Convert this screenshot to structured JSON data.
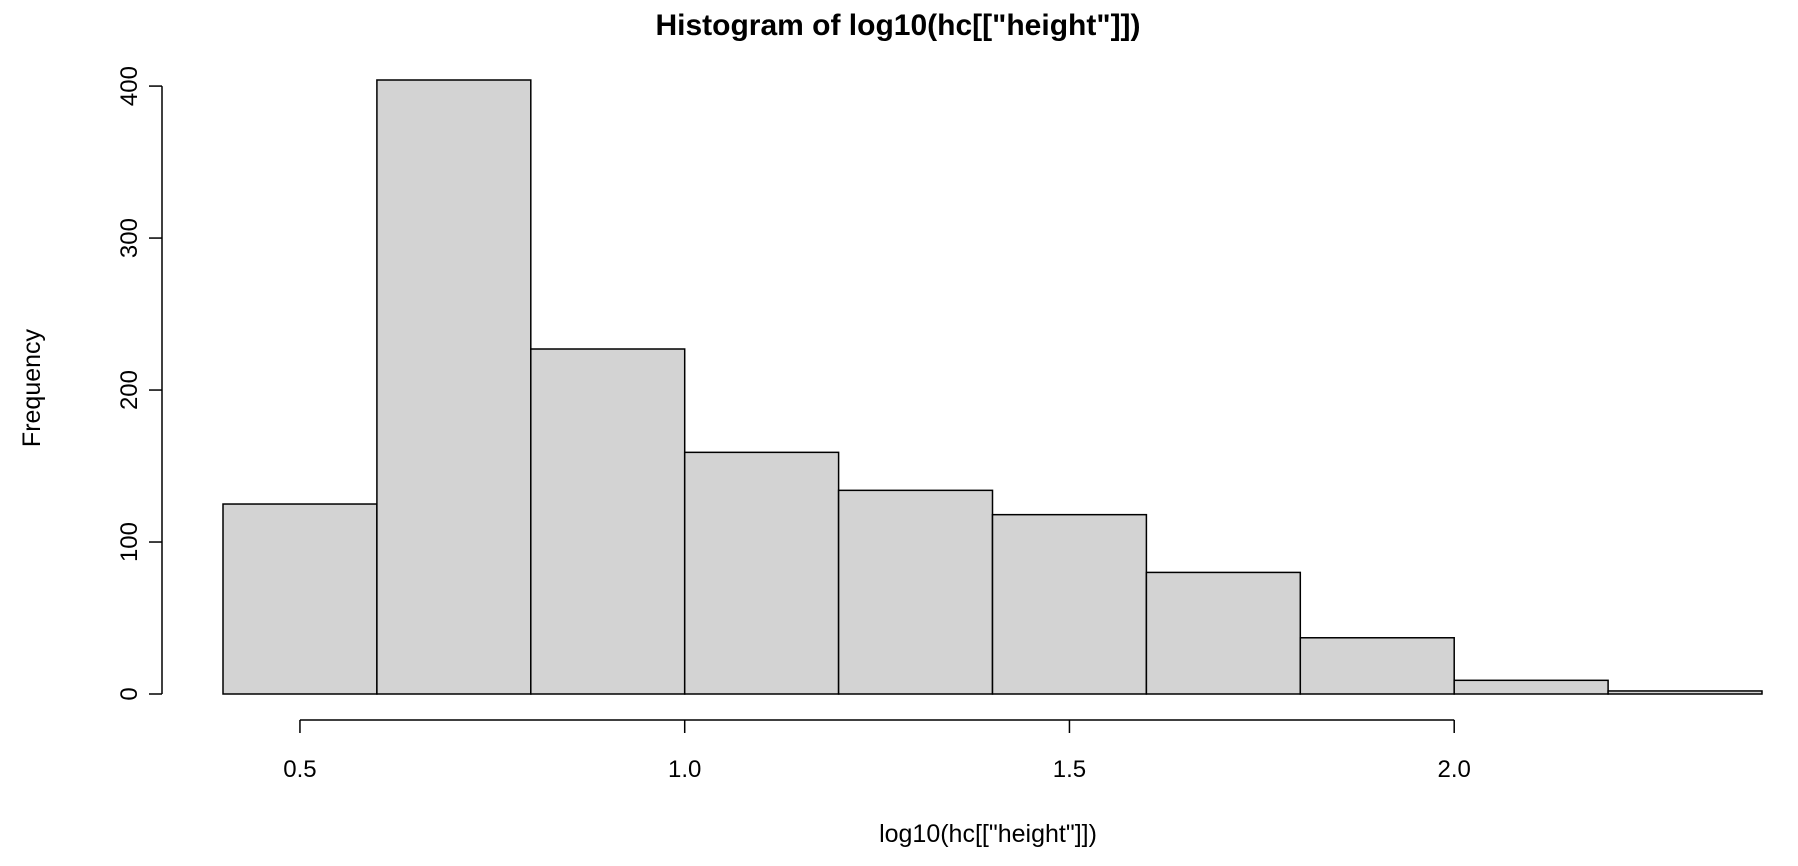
{
  "chart_data": {
    "type": "bar",
    "title": "Histogram of log10(hc[[\"height\"]])",
    "xlabel": "log10(hc[[\"height\"]])",
    "ylabel": "Frequency",
    "bins": [
      {
        "start": 0.4,
        "end": 0.6,
        "count": 125
      },
      {
        "start": 0.6,
        "end": 0.8,
        "count": 404
      },
      {
        "start": 0.8,
        "end": 1.0,
        "count": 227
      },
      {
        "start": 1.0,
        "end": 1.2,
        "count": 159
      },
      {
        "start": 1.2,
        "end": 1.4,
        "count": 134
      },
      {
        "start": 1.4,
        "end": 1.6,
        "count": 118
      },
      {
        "start": 1.6,
        "end": 1.8,
        "count": 80
      },
      {
        "start": 1.8,
        "end": 2.0,
        "count": 37
      },
      {
        "start": 2.0,
        "end": 2.2,
        "count": 9
      },
      {
        "start": 2.2,
        "end": 2.4,
        "count": 2
      }
    ],
    "x_ticks": [
      {
        "value": 0.5,
        "label": "0.5"
      },
      {
        "value": 1.0,
        "label": "1.0"
      },
      {
        "value": 1.5,
        "label": "1.5"
      },
      {
        "value": 2.0,
        "label": "2.0"
      }
    ],
    "y_ticks": [
      {
        "value": 0,
        "label": "0"
      },
      {
        "value": 100,
        "label": "100"
      },
      {
        "value": 200,
        "label": "200"
      },
      {
        "value": 300,
        "label": "300"
      },
      {
        "value": 400,
        "label": "400"
      }
    ],
    "xlim": [
      0.4,
      2.4
    ],
    "ylim": [
      0,
      404
    ],
    "grid": false,
    "bar_color": "#d3d3d3",
    "edge_color": "#000000"
  }
}
